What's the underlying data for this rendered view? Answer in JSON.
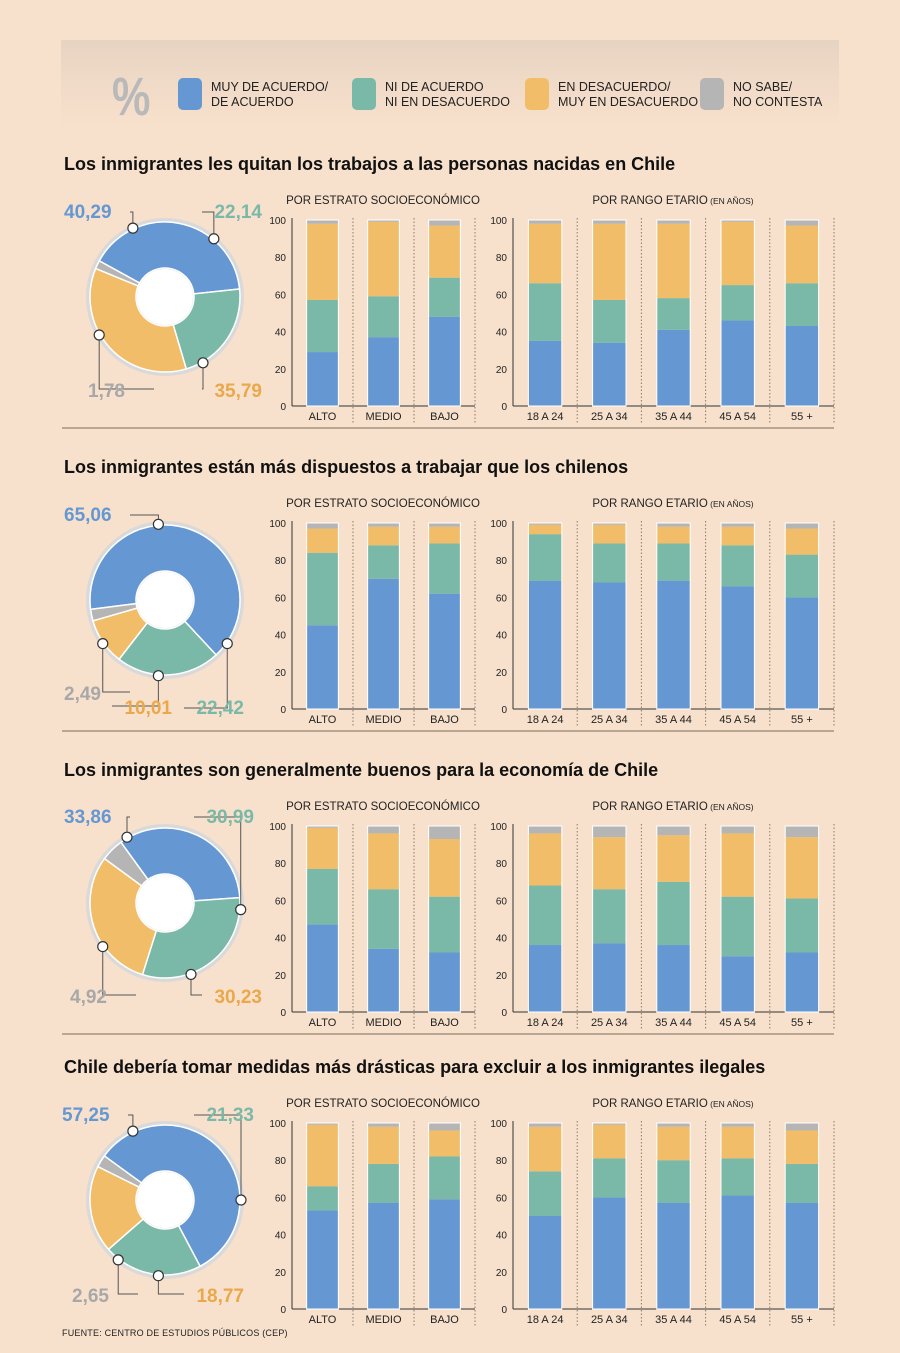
{
  "colors": {
    "agree": "#6597d2",
    "neutral": "#7ab8a8",
    "disagree": "#f2bd68",
    "dk": "#b5b5b5"
  },
  "legend": {
    "symbol": "%",
    "items": [
      {
        "key": "agree",
        "label": "MUY DE ACUERDO/\nDE ACUERDO"
      },
      {
        "key": "neutral",
        "label": "NI DE ACUERDO\nNI EN DESACUERDO"
      },
      {
        "key": "disagree",
        "label": "EN DESACUERDO/\nMUY EN DESACUERDO"
      },
      {
        "key": "dk",
        "label": "NO SABE/\nNO CONTESTA"
      }
    ]
  },
  "labels": {
    "strata_header": "POR ESTRATO SOCIOECONÓMICO",
    "age_header": "POR RANGO ETARIO",
    "age_header_small": "(EN AÑOS)"
  },
  "source": "FUENTE: CENTRO DE ESTUDIOS PÚBLICOS (CEP)",
  "chart_data": [
    {
      "type": "bar",
      "title": "Los inmigrantes les quitan los trabajos a las personas nacidas en Chile",
      "donut": {
        "agree": "40,29",
        "neutral": "22,14",
        "disagree": "35,79",
        "dk": "1,78"
      },
      "ylim": [
        0,
        100
      ],
      "yticks": [
        "0",
        "20",
        "40",
        "60",
        "80",
        "100"
      ],
      "strata": {
        "categories": [
          "ALTO",
          "MEDIO",
          "BAJO"
        ],
        "agree": [
          29,
          37,
          48
        ],
        "neutral": [
          28,
          22,
          21
        ],
        "disagree": [
          41,
          40,
          28
        ],
        "dk": [
          2,
          1,
          3
        ]
      },
      "age": {
        "categories": [
          "18 A 24",
          "25 A 34",
          "35 A 44",
          "45 A 54",
          "55 +"
        ],
        "agree": [
          35,
          34,
          41,
          46,
          43
        ],
        "neutral": [
          31,
          23,
          17,
          19,
          23
        ],
        "disagree": [
          32,
          41,
          40,
          34,
          31
        ],
        "dk": [
          2,
          2,
          2,
          1,
          3
        ]
      }
    },
    {
      "type": "bar",
      "title": "Los inmigrantes están más dispuestos a trabajar que los chilenos",
      "donut": {
        "agree": "65,06",
        "neutral": "22,42",
        "disagree": "10,01",
        "dk": "2,49"
      },
      "ylim": [
        0,
        100
      ],
      "yticks": [
        "0",
        "20",
        "40",
        "60",
        "80",
        "100"
      ],
      "strata": {
        "categories": [
          "ALTO",
          "MEDIO",
          "BAJO"
        ],
        "agree": [
          45,
          70,
          62
        ],
        "neutral": [
          39,
          18,
          27
        ],
        "disagree": [
          13,
          10,
          9
        ],
        "dk": [
          3,
          2,
          2
        ]
      },
      "age": {
        "categories": [
          "18 A 24",
          "25 A 34",
          "35 A 44",
          "45 A 54",
          "55 +"
        ],
        "agree": [
          69,
          68,
          69,
          66,
          60
        ],
        "neutral": [
          25,
          21,
          20,
          22,
          23
        ],
        "disagree": [
          5,
          10,
          9,
          10,
          14
        ],
        "dk": [
          1,
          1,
          2,
          2,
          3
        ]
      }
    },
    {
      "type": "bar",
      "title": "Los inmigrantes son generalmente buenos para la economía de Chile",
      "donut": {
        "agree": "33,86",
        "neutral": "30,99",
        "disagree": "30,23",
        "dk": "4,92"
      },
      "ylim": [
        0,
        100
      ],
      "yticks": [
        "0",
        "20",
        "40",
        "60",
        "80",
        "100"
      ],
      "strata": {
        "categories": [
          "ALTO",
          "MEDIO",
          "BAJO"
        ],
        "agree": [
          47,
          34,
          32
        ],
        "neutral": [
          30,
          32,
          30
        ],
        "disagree": [
          22,
          30,
          31
        ],
        "dk": [
          1,
          4,
          7
        ]
      },
      "age": {
        "categories": [
          "18 A 24",
          "25 A 34",
          "35 A 44",
          "45 A 54",
          "55 +"
        ],
        "agree": [
          36,
          37,
          36,
          30,
          32
        ],
        "neutral": [
          32,
          29,
          34,
          32,
          29
        ],
        "disagree": [
          28,
          28,
          25,
          34,
          33
        ],
        "dk": [
          4,
          6,
          5,
          4,
          6
        ]
      }
    },
    {
      "type": "bar",
      "title": "Chile debería tomar medidas más drásticas para excluir a los inmigrantes ilegales",
      "donut": {
        "agree": "57,25",
        "neutral": "21,33",
        "disagree": "18,77",
        "dk": "2,65"
      },
      "ylim": [
        0,
        100
      ],
      "yticks": [
        "0",
        "20",
        "40",
        "60",
        "80",
        "100"
      ],
      "strata": {
        "categories": [
          "ALTO",
          "MEDIO",
          "BAJO"
        ],
        "agree": [
          53,
          57,
          59
        ],
        "neutral": [
          13,
          21,
          23
        ],
        "disagree": [
          33,
          20,
          14
        ],
        "dk": [
          1,
          2,
          4
        ]
      },
      "age": {
        "categories": [
          "18 A 24",
          "25 A 34",
          "35 A 44",
          "45 A 54",
          "55 +"
        ],
        "agree": [
          50,
          60,
          57,
          61,
          57
        ],
        "neutral": [
          24,
          21,
          23,
          20,
          21
        ],
        "disagree": [
          24,
          18,
          18,
          17,
          18
        ],
        "dk": [
          2,
          1,
          2,
          2,
          4
        ]
      }
    }
  ]
}
